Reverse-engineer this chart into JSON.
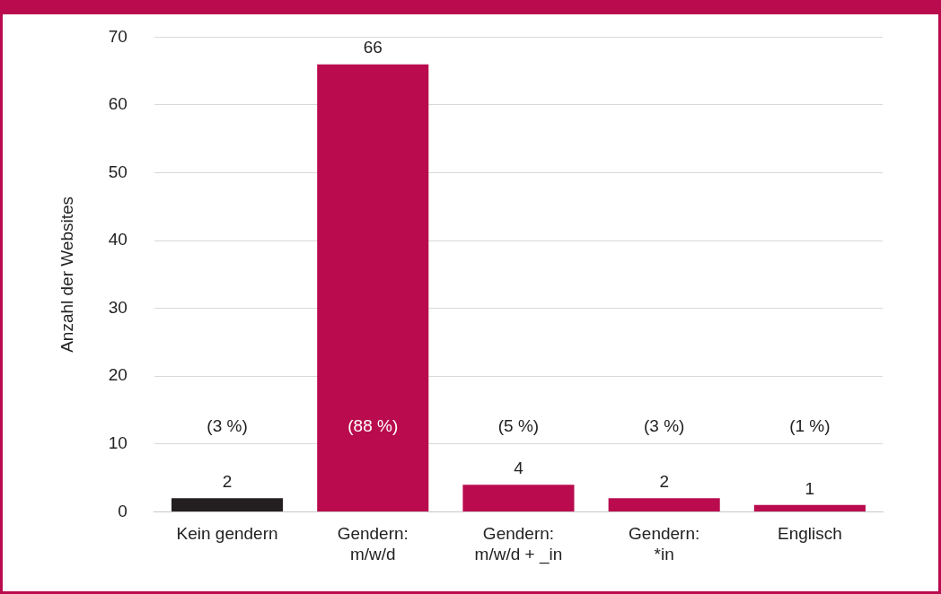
{
  "chart_data": {
    "type": "bar",
    "ylabel": "Anzahl der Websites",
    "categories": [
      "Kein gendern",
      "Gendern:\nm/w/d",
      "Gendern:\nm/w/d + _in",
      "Gendern:\n*in",
      "Englisch"
    ],
    "values": [
      2,
      66,
      4,
      2,
      1
    ],
    "colors": [
      "#231f20",
      "#b90b4d",
      "#b90b4d",
      "#b90b4d",
      "#b90b4d"
    ],
    "ylim": [
      0,
      70
    ],
    "yticks": [
      0,
      10,
      20,
      30,
      40,
      50,
      60,
      70
    ],
    "grid": "y",
    "legend": false,
    "data_labels": true,
    "annotations": [
      "(3 %)",
      "(88 %)",
      "(5 %)",
      "(3 %)",
      "(1 %)"
    ]
  }
}
